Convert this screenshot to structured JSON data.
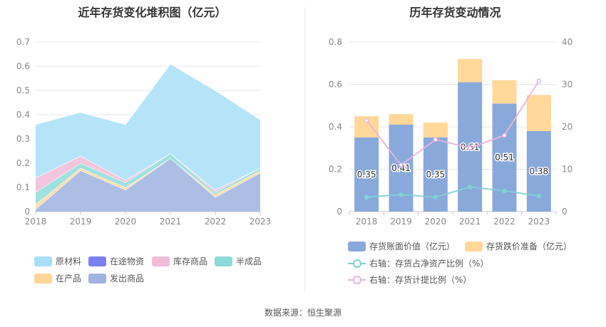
{
  "left_title": "近年存货变化堆积图（亿元）",
  "right_title": "历年存货变动情况",
  "source": "数据来源：恒生聚源",
  "chart_data": [
    {
      "type": "area",
      "title": "近年存货变化堆积图（亿元）",
      "stacked": true,
      "x": [
        "2018",
        "2019",
        "2020",
        "2021",
        "2022",
        "2023"
      ],
      "ylim": [
        0,
        0.7
      ],
      "yticks": [
        "0",
        "0.1",
        "0.2",
        "0.3",
        "0.4",
        "0.5",
        "0.6",
        "0.7"
      ],
      "grid": true,
      "legend_position": "bottom",
      "series": [
        {
          "name": "原材料",
          "color": "#a8dff7",
          "values": [
            0.22,
            0.18,
            0.23,
            0.37,
            0.41,
            0.2
          ]
        },
        {
          "name": "在途物资",
          "color": "#7b7ff0",
          "values": [
            0,
            0,
            0,
            0,
            0,
            0
          ]
        },
        {
          "name": "库存商品",
          "color": "#f0bcd8",
          "values": [
            0.06,
            0.03,
            0.01,
            0,
            0.01,
            0
          ]
        },
        {
          "name": "半成品",
          "color": "#8fdad8",
          "values": [
            0.05,
            0.02,
            0.02,
            0.02,
            0.01,
            0.01
          ]
        },
        {
          "name": "在产品",
          "color": "#ffd79a",
          "values": [
            0.02,
            0.01,
            0.01,
            0,
            0.01,
            0.01
          ]
        },
        {
          "name": "发出商品",
          "color": "#9fb3e0",
          "values": [
            0.01,
            0.17,
            0.09,
            0.22,
            0.06,
            0.16
          ]
        }
      ]
    },
    {
      "type": "bar",
      "title": "历年存货变动情况",
      "stacked": true,
      "categories": [
        "2018",
        "2019",
        "2020",
        "2021",
        "2022",
        "2023"
      ],
      "ylim": [
        0,
        0.8
      ],
      "yticks": [
        "0",
        "0.2",
        "0.4",
        "0.6",
        "0.8"
      ],
      "y2lim": [
        0,
        40
      ],
      "y2ticks": [
        "0",
        "10",
        "20",
        "30",
        "40"
      ],
      "legend_position": "bottom",
      "series": [
        {
          "name": "存货账面价值（亿元）",
          "color": "#8aa9db",
          "values": [
            0.35,
            0.41,
            0.35,
            0.61,
            0.51,
            0.38
          ],
          "labels": [
            "0.35",
            "0.41",
            "0.35",
            "0.61",
            "0.51",
            "0.38"
          ]
        },
        {
          "name": "存货跌价准备（亿元）",
          "color": "#ffd89a",
          "values": [
            0.1,
            0.05,
            0.07,
            0.11,
            0.11,
            0.17
          ]
        }
      ],
      "line_series": [
        {
          "name": "右轴：存货占净资产比例（%）",
          "color": "#7fd1d3",
          "axis": "right",
          "values": [
            3.4,
            4.0,
            3.4,
            5.8,
            4.9,
            3.7
          ]
        },
        {
          "name": "右轴：存货计提比例（%）",
          "color": "#e8b4dc",
          "axis": "right",
          "values": [
            21.5,
            11.0,
            17.0,
            15.0,
            18.0,
            30.8
          ]
        }
      ]
    }
  ]
}
